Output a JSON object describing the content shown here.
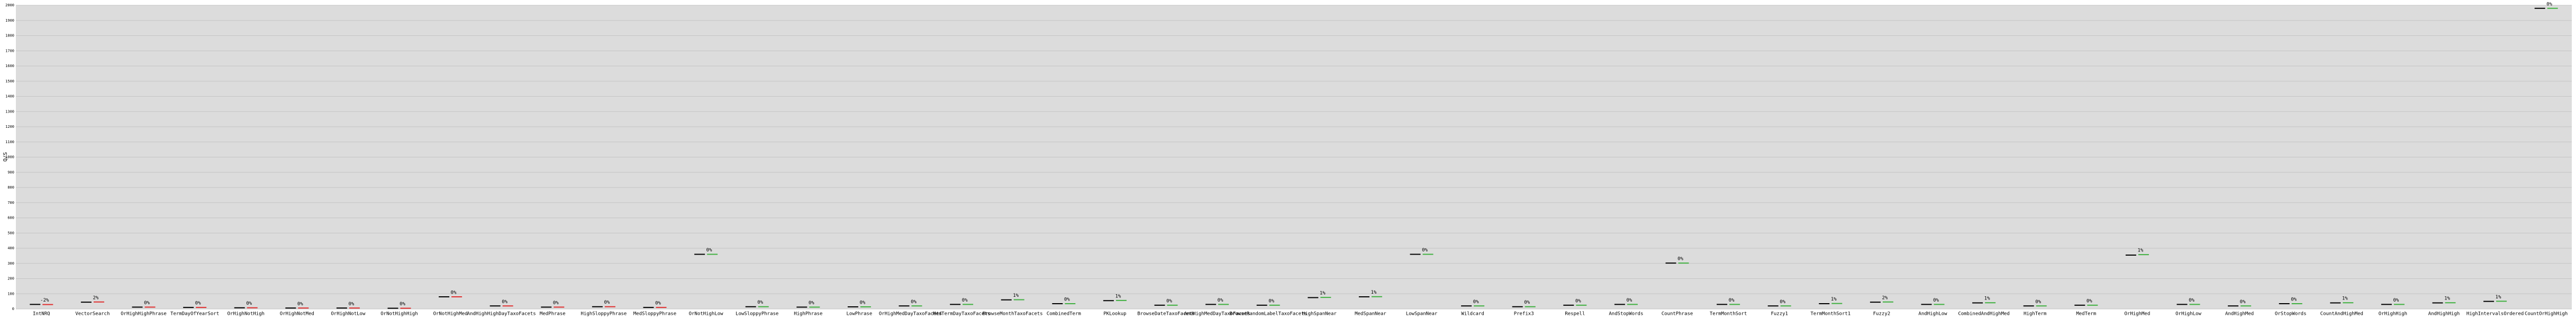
{
  "chart_data": {
    "type": "marker",
    "ylabel": "Q/S",
    "categories": [
      "IntNRQ",
      "VectorSearch",
      "OrHighHighPhrase",
      "TermDayOfYearSort",
      "OrHighNotHigh",
      "OrHighNotMed",
      "OrHighNotLow",
      "OrNotHighHigh",
      "OrNotHighMed",
      "AndHighHighDayTaxoFacets",
      "MedPhrase",
      "HighSloppyPhrase",
      "MedSloppyPhrase",
      "OrNotHighLow",
      "LowSloppyPhrase",
      "HighPhrase",
      "LowPhrase",
      "OrHighMedDayTaxoFacets",
      "MedTermDayTaxoFacets",
      "BrowseMonthTaxoFacets",
      "CombinedTerm",
      "PKLookup",
      "BrowseDateTaxoFacets",
      "AndHighMedDayTaxoFacets",
      "BrowseRandomLabelTaxoFacets",
      "HighSpanNear",
      "MedSpanNear",
      "LowSpanNear",
      "Wildcard",
      "Prefix3",
      "Respell",
      "AndStopWords",
      "CountPhrase",
      "TermMonthSort",
      "Fuzzy1",
      "TermMonthSort1",
      "Fuzzy2",
      "AndHighLow",
      "CombinedAndHighMed",
      "HighTerm",
      "MedTerm",
      "OrHighMed",
      "OrHighLow",
      "AndHighMed",
      "OrStopWords",
      "CountAndHighMed",
      "OrHighHigh",
      "AndHighHigh",
      "HighIntervalsOrdered",
      "CountOrHighHigh"
    ],
    "baseline": [
      30,
      45,
      12,
      10,
      8,
      6,
      6,
      5,
      80,
      20,
      12,
      15,
      10,
      360,
      15,
      12,
      14,
      20,
      30,
      60,
      35,
      55,
      25,
      30,
      25,
      75,
      80,
      360,
      20,
      15,
      25,
      30,
      302,
      30,
      20,
      35,
      45,
      30,
      40,
      20,
      25,
      355,
      30,
      20,
      35,
      40,
      30,
      40,
      50,
      1980
    ],
    "candidate": [
      29,
      46,
      12,
      10,
      8,
      6,
      6,
      5,
      80,
      20,
      12,
      15,
      10,
      360,
      15,
      12,
      14,
      20,
      30,
      61,
      35,
      56,
      25,
      30,
      25,
      76,
      81,
      360,
      20,
      15,
      25,
      30,
      302,
      30,
      20,
      36,
      46,
      30,
      41,
      20,
      25,
      358,
      30,
      20,
      35,
      41,
      30,
      41,
      51,
      1980
    ],
    "change_labels": [
      "-2%",
      "2%",
      "0%",
      "0%",
      "0%",
      "0%",
      "0%",
      "0%",
      "0%",
      "0%",
      "0%",
      "0%",
      "0%",
      "0%",
      "0%",
      "0%",
      "0%",
      "0%",
      "0%",
      "1%",
      "0%",
      "1%",
      "0%",
      "0%",
      "0%",
      "1%",
      "1%",
      "0%",
      "0%",
      "0%",
      "0%",
      "0%",
      "0%",
      "0%",
      "0%",
      "1%",
      "2%",
      "0%",
      "1%",
      "0%",
      "0%",
      "1%",
      "0%",
      "0%",
      "0%",
      "1%",
      "0%",
      "1%",
      "1%",
      "0%"
    ],
    "candidate_colors": [
      "#e03030",
      "#e03030",
      "#e03030",
      "#e03030",
      "#e03030",
      "#e03030",
      "#e03030",
      "#e03030",
      "#e03030",
      "#e03030",
      "#e03030",
      "#e03030",
      "#e03030",
      "#40b040",
      "#40b040",
      "#40b040",
      "#40b040",
      "#40b040",
      "#40b040",
      "#40b040",
      "#40b040",
      "#40b040",
      "#40b040",
      "#40b040",
      "#40b040",
      "#40b040",
      "#40b040",
      "#40b040",
      "#40b040",
      "#40b040",
      "#40b040",
      "#40b040",
      "#40b040",
      "#40b040",
      "#40b040",
      "#40b040",
      "#40b040",
      "#40b040",
      "#40b040",
      "#40b040",
      "#40b040",
      "#40b040",
      "#40b040",
      "#40b040",
      "#40b040",
      "#40b040",
      "#40b040",
      "#40b040",
      "#40b040",
      "#40b040"
    ],
    "ylim": [
      0,
      2000
    ],
    "yticks": [
      0,
      100,
      200,
      300,
      400,
      500,
      600,
      700,
      800,
      900,
      1000,
      1100,
      1200,
      1300,
      1400,
      1500,
      1600,
      1700,
      1800,
      1900,
      2000
    ],
    "grid": true
  }
}
